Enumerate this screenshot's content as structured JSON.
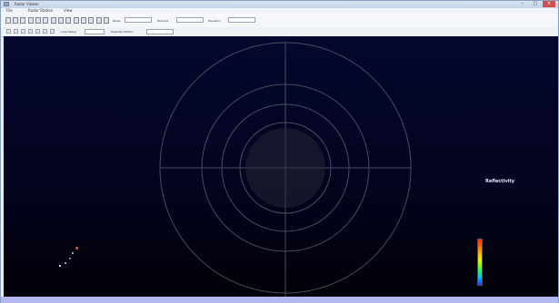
{
  "window": {
    "title": "Radar Viewer"
  },
  "menu": {
    "items": [
      "File",
      "Radar Station",
      "View"
    ]
  },
  "toolbar": {
    "labels": [
      "Radar",
      "Moment",
      "Elevation"
    ],
    "fields": [
      "",
      "",
      ""
    ],
    "row2_labels": [
      "Loop Delay",
      "Selected Station"
    ],
    "row2_fields": [
      "",
      ""
    ],
    "center_text": ""
  },
  "viewer": {
    "ring_labels": [
      "",
      "",
      "",
      ""
    ]
  },
  "legend": {
    "title": "Reflectivity",
    "ticks": [
      "",
      "",
      "",
      "",
      "",
      ""
    ]
  },
  "colors": {
    "viewport_top": "#05072e",
    "viewport_bottom": "#010108",
    "status_bar": "#b4b7f0",
    "ring_color": "#4a4d5a"
  }
}
